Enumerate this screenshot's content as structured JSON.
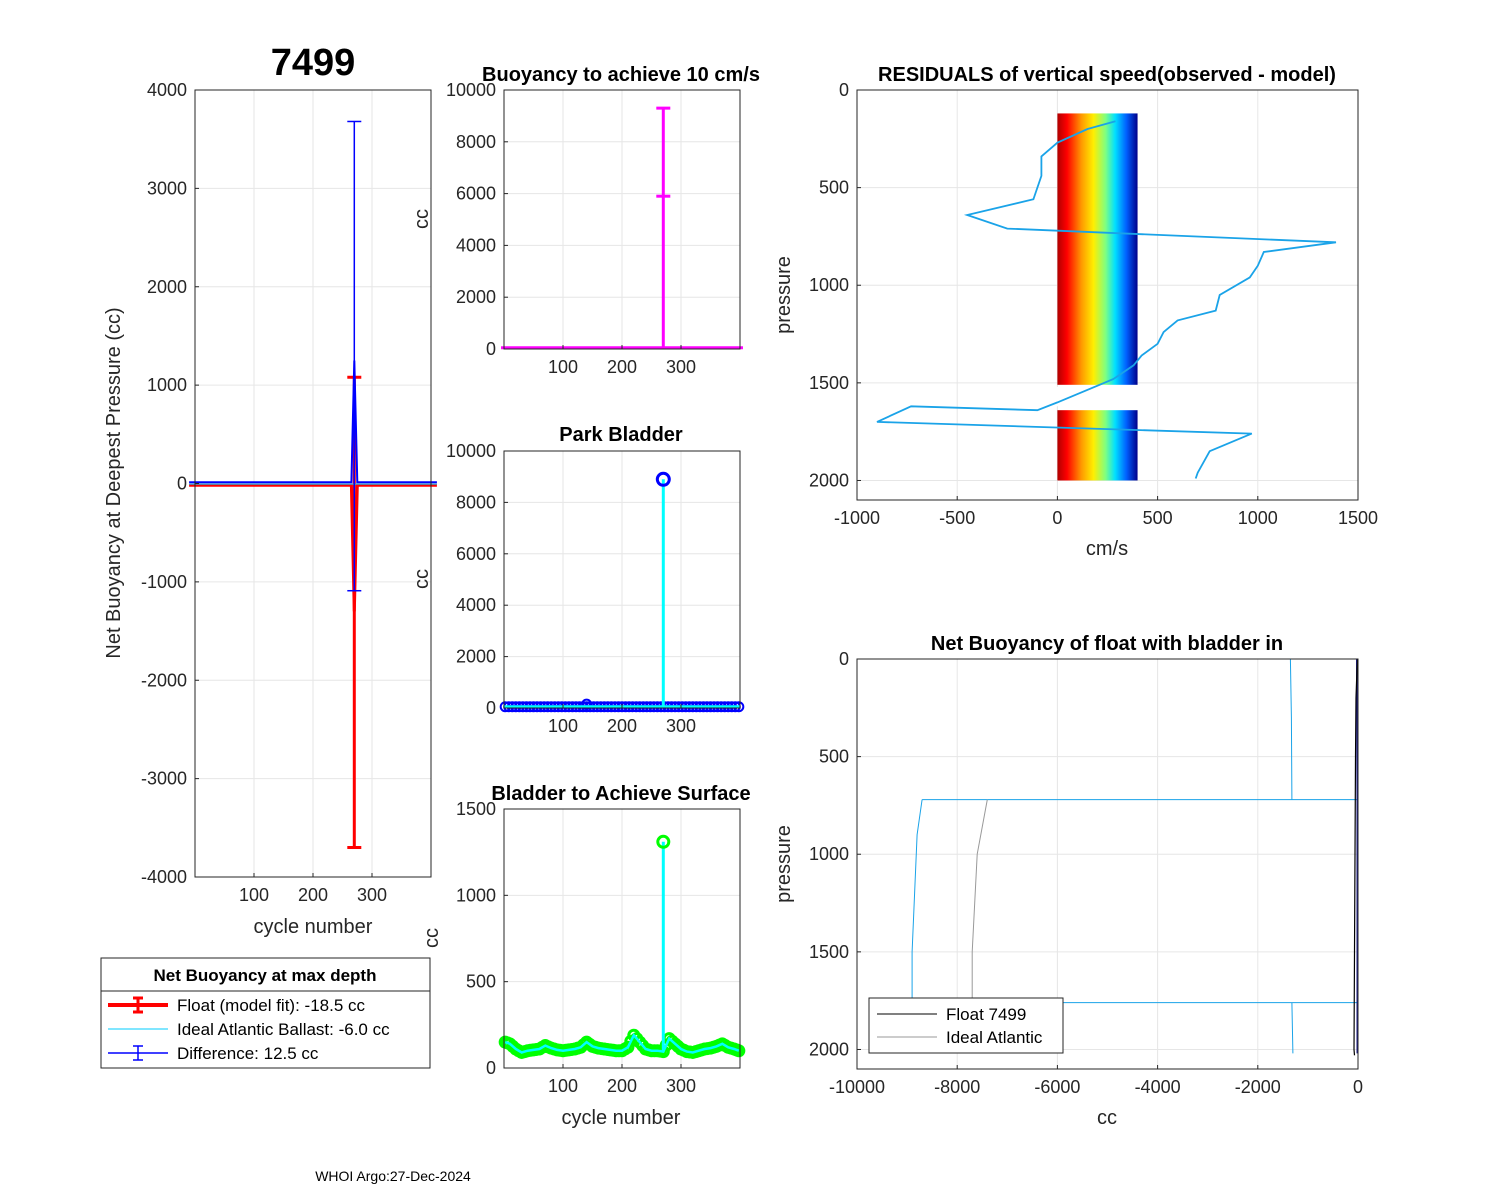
{
  "figure": {
    "main_title": "7499",
    "footer": "WHOI Argo:27-Dec-2024"
  },
  "colors": {
    "float_fit": "#ff0000",
    "difference": "#0000ff",
    "ideal": "#00ccff",
    "magenta": "#ff00ff",
    "cyan": "#00ffff",
    "green": "#00ff00",
    "park_marker": "#0000ff",
    "grid": "#e6e6e6"
  },
  "chart_data": [
    {
      "id": "net_buoyancy_max_depth",
      "type": "errorbar",
      "title": "7499",
      "xlabel": "cycle number",
      "ylabel": "Net Buoyancy at Deepest Pressure (cc)",
      "xlim": [
        0,
        400
      ],
      "ylim": [
        -4000,
        4000
      ],
      "xticks": [
        100,
        200,
        300
      ],
      "yticks": [
        -4000,
        -3000,
        -2000,
        -1000,
        0,
        1000,
        2000,
        3000,
        4000
      ],
      "series": [
        {
          "name": "Float (model fit)",
          "baseline": -18.5,
          "spike": {
            "x": 270,
            "y": -1300,
            "err_low": -3700,
            "err_high": 1080
          }
        },
        {
          "name": "Difference",
          "baseline": 12.5,
          "spike": {
            "x": 270,
            "y": 1250,
            "err_low": -1090,
            "err_high": 3680
          }
        }
      ],
      "legend": {
        "title": "Net Buoyancy at max depth",
        "entries": [
          "Float (model fit): -18.5 cc",
          "Ideal Atlantic Ballast:  -6.0 cc",
          "Difference:  12.5 cc"
        ]
      }
    },
    {
      "id": "buoyancy_10cms",
      "type": "line",
      "title": "Buoyancy to achieve 10 cm/s",
      "xlabel": "",
      "ylabel": "cc",
      "xlim": [
        0,
        400
      ],
      "ylim": [
        0,
        10000
      ],
      "xticks": [
        100,
        200,
        300
      ],
      "yticks": [
        0,
        2000,
        4000,
        6000,
        8000,
        10000
      ],
      "baseline": 50,
      "spike": {
        "x": 270,
        "y": 5900,
        "err_low": 0,
        "err_high": 9300
      }
    },
    {
      "id": "park_bladder",
      "type": "stem",
      "title": "Park Bladder",
      "xlabel": "",
      "ylabel": "cc",
      "xlim": [
        0,
        400
      ],
      "ylim": [
        0,
        10000
      ],
      "xticks": [
        100,
        200,
        300
      ],
      "yticks": [
        0,
        2000,
        4000,
        6000,
        8000,
        10000
      ],
      "baseline": 50,
      "spike": {
        "x": 270,
        "y": 8900
      },
      "extra_marker": {
        "x": 140,
        "y": 150
      }
    },
    {
      "id": "bladder_surface",
      "type": "stem",
      "title": "Bladder to Achieve Surface",
      "xlabel": "cycle number",
      "ylabel": "cc",
      "xlim": [
        0,
        400
      ],
      "ylim": [
        0,
        1500
      ],
      "xticks": [
        100,
        200,
        300
      ],
      "yticks": [
        0,
        500,
        1000,
        1500
      ],
      "spike": {
        "x": 270,
        "y": 1310
      },
      "series_points": [
        [
          2,
          150
        ],
        [
          10,
          140
        ],
        [
          20,
          110
        ],
        [
          30,
          90
        ],
        [
          40,
          100
        ],
        [
          50,
          105
        ],
        [
          60,
          110
        ],
        [
          70,
          130
        ],
        [
          80,
          115
        ],
        [
          90,
          105
        ],
        [
          100,
          100
        ],
        [
          110,
          105
        ],
        [
          120,
          110
        ],
        [
          130,
          120
        ],
        [
          140,
          150
        ],
        [
          150,
          125
        ],
        [
          160,
          115
        ],
        [
          170,
          110
        ],
        [
          180,
          105
        ],
        [
          190,
          100
        ],
        [
          200,
          100
        ],
        [
          210,
          120
        ],
        [
          220,
          190
        ],
        [
          230,
          150
        ],
        [
          240,
          110
        ],
        [
          250,
          100
        ],
        [
          260,
          100
        ],
        [
          270,
          95
        ],
        [
          280,
          170
        ],
        [
          290,
          140
        ],
        [
          300,
          110
        ],
        [
          310,
          95
        ],
        [
          320,
          90
        ],
        [
          330,
          100
        ],
        [
          340,
          110
        ],
        [
          350,
          115
        ],
        [
          360,
          125
        ],
        [
          370,
          140
        ],
        [
          380,
          120
        ],
        [
          390,
          110
        ],
        [
          398,
          100
        ]
      ]
    },
    {
      "id": "residuals",
      "type": "line",
      "title": "RESIDUALS of vertical speed(observed - model)",
      "xlabel": "cm/s",
      "ylabel": "pressure",
      "xlim": [
        -1000,
        1500
      ],
      "ylim": [
        0,
        2100
      ],
      "y_reversed": true,
      "xticks": [
        -1000,
        -500,
        0,
        500,
        1000,
        1500
      ],
      "yticks": [
        0,
        500,
        1000,
        1500,
        2000
      ],
      "band": {
        "x_min": 0,
        "x_max": 400,
        "p_min": 120,
        "p_max": 2000,
        "gap": [
          1510,
          1640
        ]
      },
      "profile": [
        [
          290,
          160
        ],
        [
          150,
          200
        ],
        [
          0,
          270
        ],
        [
          -80,
          340
        ],
        [
          -80,
          440
        ],
        [
          -120,
          560
        ],
        [
          -450,
          640
        ],
        [
          -250,
          710
        ],
        [
          1390,
          780
        ],
        [
          1030,
          830
        ],
        [
          1000,
          900
        ],
        [
          960,
          960
        ],
        [
          810,
          1050
        ],
        [
          790,
          1130
        ],
        [
          600,
          1180
        ],
        [
          530,
          1240
        ],
        [
          500,
          1300
        ],
        [
          420,
          1360
        ],
        [
          380,
          1410
        ],
        [
          280,
          1480
        ],
        [
          0,
          1600
        ],
        [
          -100,
          1640
        ],
        [
          -730,
          1620
        ],
        [
          -900,
          1700
        ],
        [
          970,
          1760
        ],
        [
          760,
          1850
        ],
        [
          700,
          1960
        ],
        [
          690,
          1990
        ]
      ]
    },
    {
      "id": "net_buoyancy_bladder_in",
      "type": "line",
      "title": "Net Buoyancy of float with bladder in",
      "xlabel": "cc",
      "ylabel": "pressure",
      "xlim": [
        -10000,
        0
      ],
      "ylim": [
        0,
        2100
      ],
      "y_reversed": true,
      "xticks": [
        -10000,
        -8000,
        -6000,
        -4000,
        -2000,
        0
      ],
      "yticks": [
        0,
        500,
        1000,
        1500,
        2000
      ],
      "series": [
        {
          "name": "Float 7499",
          "points": [
            [
              -10,
              0
            ],
            [
              -20,
              50
            ],
            [
              -40,
              200
            ],
            [
              -50,
              500
            ],
            [
              -60,
              1000
            ],
            [
              -70,
              1500
            ],
            [
              -80,
              2000
            ],
            [
              -70,
              2030
            ]
          ]
        },
        {
          "name": "Ideal Atlantic",
          "points": [
            [
              -7400,
              720
            ],
            [
              -7600,
              1000
            ],
            [
              -7700,
              1500
            ],
            [
              -7700,
              1760
            ]
          ]
        }
      ],
      "legend_entries": [
        "Float 7499",
        "Ideal Atlantic"
      ]
    }
  ]
}
